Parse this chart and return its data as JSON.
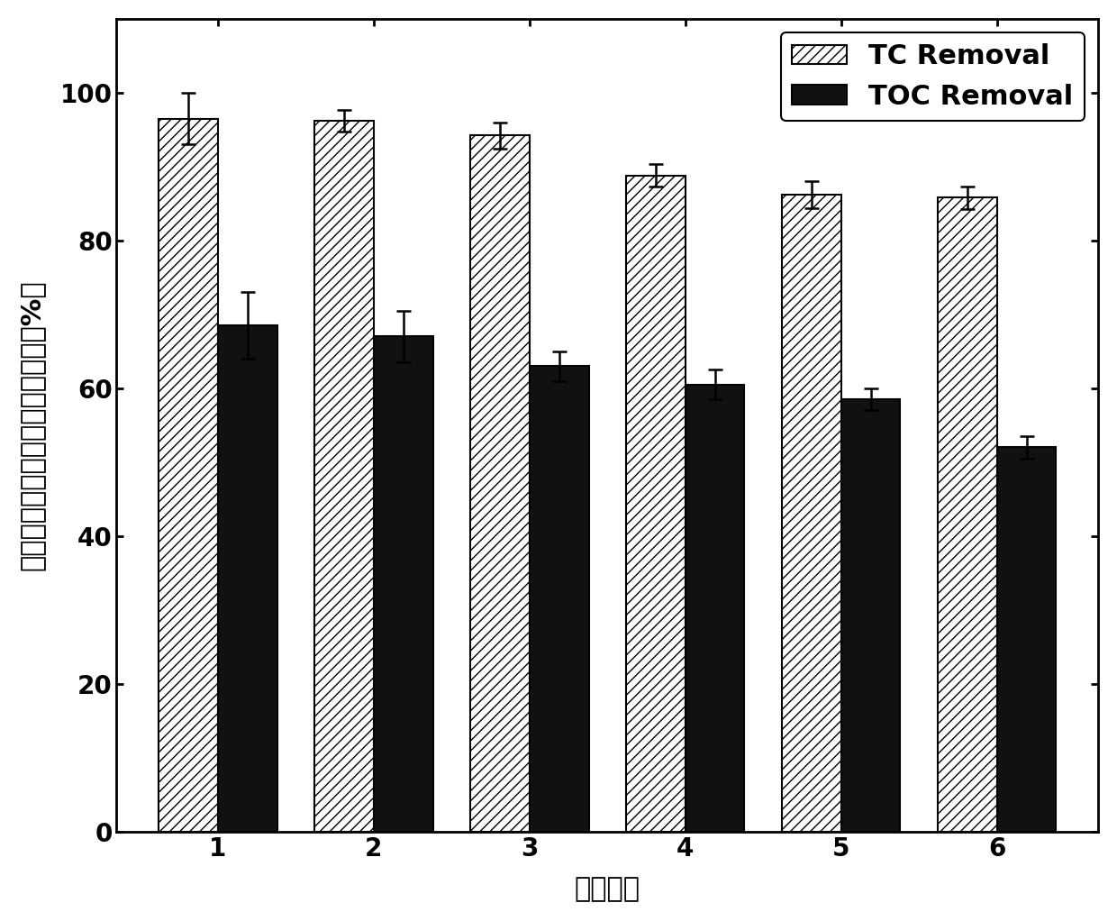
{
  "categories": [
    "1",
    "2",
    "3",
    "4",
    "5",
    "6"
  ],
  "tc_values": [
    96.5,
    96.2,
    94.2,
    88.8,
    86.2,
    85.8
  ],
  "toc_values": [
    68.5,
    67.0,
    63.0,
    60.5,
    58.5,
    52.0
  ],
  "tc_errors": [
    3.5,
    1.5,
    1.8,
    1.5,
    1.8,
    1.5
  ],
  "toc_errors": [
    4.5,
    3.5,
    2.0,
    2.0,
    1.5,
    1.5
  ],
  "tc_color": "white",
  "toc_color": "#111111",
  "xlabel": "循环次数",
  "ylabel": "盐酸四环素和总有机碳的去除率（%）",
  "ylim": [
    0,
    110
  ],
  "yticks": [
    0,
    20,
    40,
    60,
    80,
    100
  ],
  "legend_tc": "TC Removal",
  "legend_toc": "TOC Removal",
  "bar_width": 0.38,
  "hatch_pattern": "///",
  "label_fontsize": 22,
  "tick_fontsize": 20,
  "legend_fontsize": 22,
  "background_color": "#ffffff",
  "edge_color": "#000000"
}
